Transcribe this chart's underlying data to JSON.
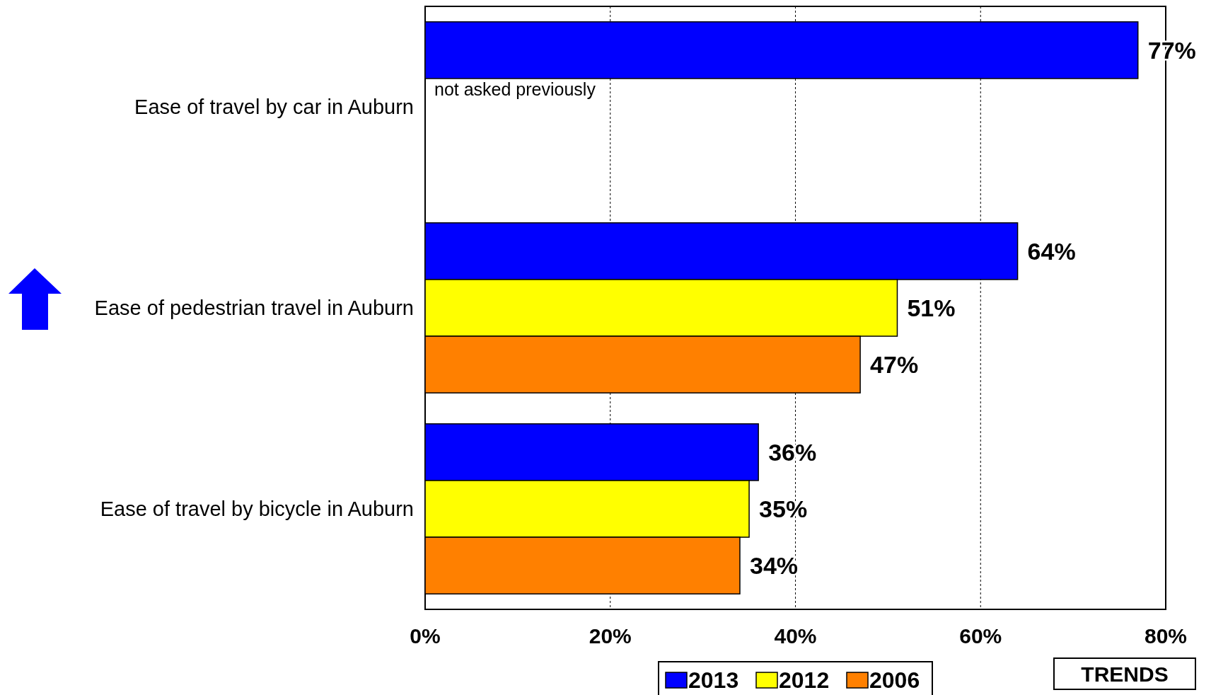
{
  "chart_data": {
    "type": "bar",
    "orientation": "horizontal",
    "categories": [
      "Ease of travel by car in Auburn",
      "Ease of pedestrian travel in Auburn",
      "Ease of travel by bicycle in Auburn"
    ],
    "series": [
      {
        "name": "2013",
        "color": "#0000ff",
        "values": [
          77,
          64,
          36
        ],
        "value_labels": [
          "77%",
          "64%",
          "36%"
        ]
      },
      {
        "name": "2012",
        "color": "#ffff00",
        "values": [
          null,
          51,
          35
        ],
        "value_labels": [
          null,
          "51%",
          "35%"
        ]
      },
      {
        "name": "2006",
        "color": "#ff8000",
        "values": [
          null,
          47,
          34
        ],
        "value_labels": [
          null,
          "47%",
          "34%"
        ]
      }
    ],
    "xlim": [
      0,
      80
    ],
    "xticks": [
      {
        "value": 0,
        "label": "0%"
      },
      {
        "value": 20,
        "label": "20%"
      },
      {
        "value": 40,
        "label": "40%"
      },
      {
        "value": 60,
        "label": "60%"
      },
      {
        "value": 80,
        "label": "80%"
      }
    ],
    "grid": "x",
    "legend": "bottom",
    "annotations": [
      "not asked previously",
      "TRENDS"
    ]
  }
}
